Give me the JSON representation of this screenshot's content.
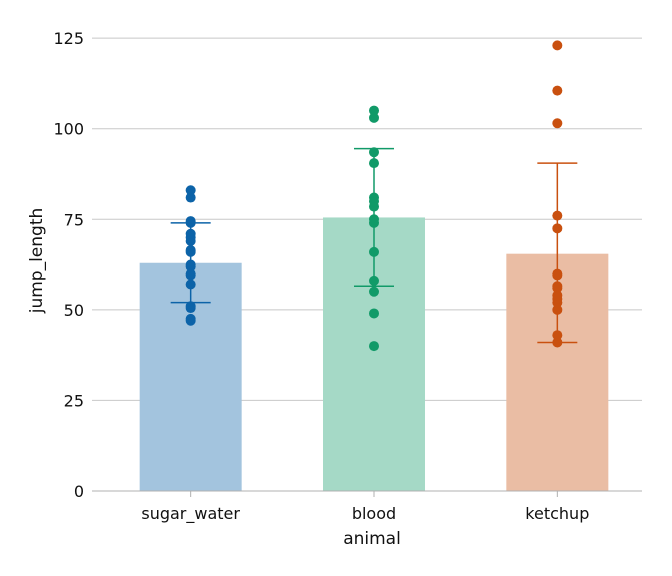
{
  "chart_data": {
    "type": "bar",
    "xlabel": "animal",
    "ylabel": "jump_length",
    "ylim": [
      0,
      130
    ],
    "yticks": [
      0,
      25,
      50,
      75,
      100,
      125
    ],
    "grid": "horizontal",
    "categories": [
      "sugar_water",
      "blood",
      "ketchup"
    ],
    "colors": {
      "sugar_water": "#0c63a8",
      "blood": "#119a68",
      "ketchup": "#c9500f"
    },
    "bars": [
      {
        "category": "sugar_water",
        "mean": 63,
        "error_low": 52,
        "error_high": 74
      },
      {
        "category": "blood",
        "mean": 75.5,
        "error_low": 56.5,
        "error_high": 94.5
      },
      {
        "category": "ketchup",
        "mean": 65.5,
        "error_low": 41,
        "error_high": 90.5
      }
    ],
    "points": {
      "sugar_water": [
        47,
        47.5,
        50.5,
        51,
        57,
        59.5,
        60,
        62,
        62.5,
        66,
        66.5,
        69,
        70,
        71,
        74,
        74.5,
        81,
        83
      ],
      "blood": [
        40,
        49,
        55,
        58,
        66,
        74,
        75,
        78.5,
        80,
        81,
        90.5,
        93.5,
        103,
        105
      ],
      "ketchup": [
        41,
        43,
        50,
        52,
        53,
        54,
        56,
        56.5,
        59.5,
        60,
        72.5,
        76,
        101.5,
        110.5,
        123
      ]
    }
  }
}
